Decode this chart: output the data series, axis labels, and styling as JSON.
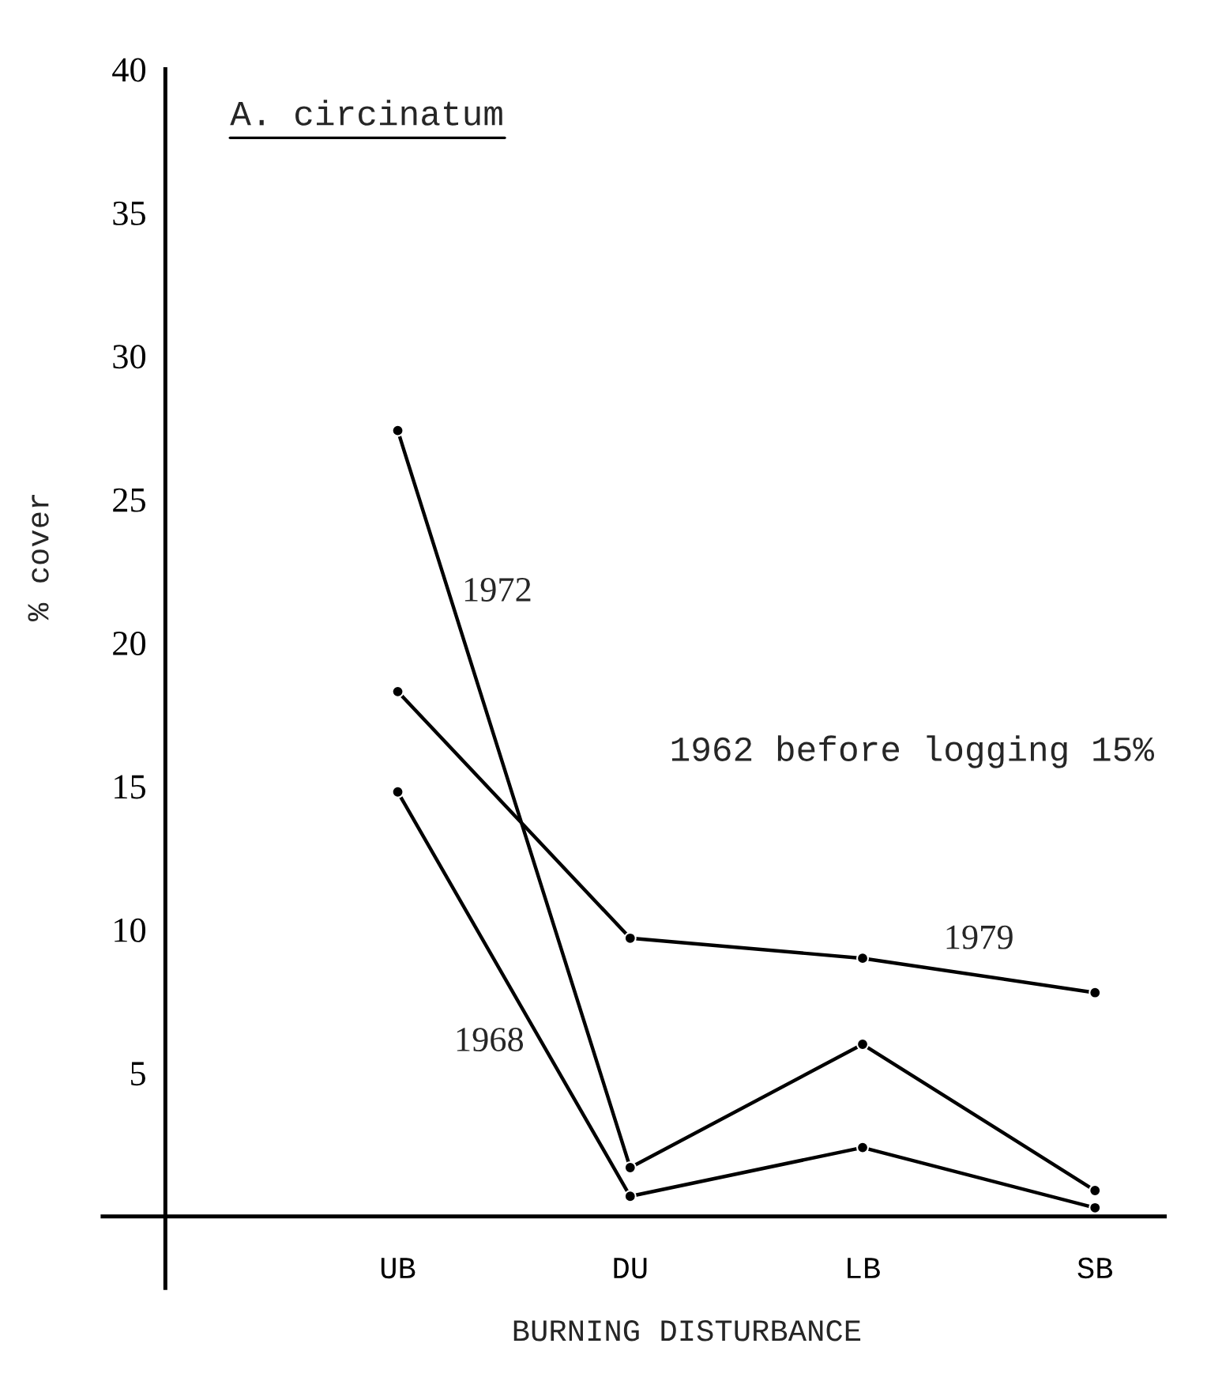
{
  "chart_data": {
    "type": "line",
    "title": "A. circinatum",
    "xlabel": "BURNING DISTURBANCE",
    "ylabel": "% cover",
    "categories": [
      "UB",
      "DU",
      "LB",
      "SB"
    ],
    "series": [
      {
        "name": "1972",
        "color": "#000000",
        "values": [
          27.4,
          1.7,
          6.0,
          0.9
        ]
      },
      {
        "name": "1979",
        "color": "#000000",
        "values": [
          18.3,
          9.7,
          9.0,
          7.8
        ]
      },
      {
        "name": "1968",
        "color": "#000000",
        "values": [
          14.8,
          0.7,
          2.4,
          0.3
        ]
      }
    ],
    "annotations": [
      "1962 before logging 15%"
    ],
    "ylim": [
      -2.5,
      40
    ],
    "yticks": [
      5,
      10,
      15,
      20,
      25,
      30,
      35,
      40
    ],
    "marker": "circle",
    "line_style": "solid",
    "grid": false,
    "legend": false
  }
}
